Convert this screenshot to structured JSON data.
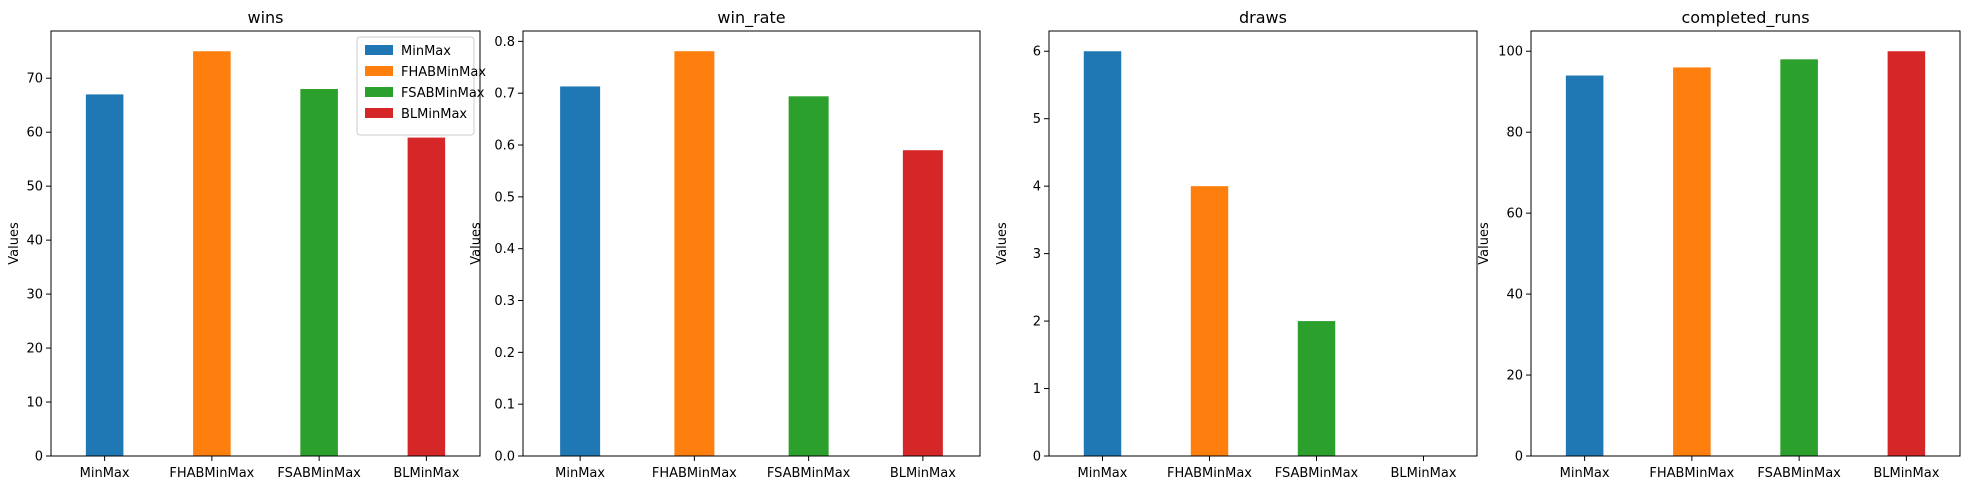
{
  "colors": {
    "MinMax": "#1f77b4",
    "FHABMinMax": "#ff7f0e",
    "FSABMinMax": "#2ca02c",
    "BLMinMax": "#d62728"
  },
  "chart_data": [
    {
      "type": "bar",
      "title": "wins",
      "xlabel": "",
      "ylabel": "Values",
      "categories": [
        "MinMax",
        "FHABMinMax",
        "FSABMinMax",
        "BLMinMax"
      ],
      "values": [
        67,
        75,
        68,
        59
      ],
      "ylim": [
        0,
        78.75
      ],
      "yticks": [
        0,
        10,
        20,
        30,
        40,
        50,
        60,
        70
      ],
      "ytick_labels": [
        "0",
        "10",
        "20",
        "30",
        "40",
        "50",
        "60",
        "70"
      ],
      "legend": {
        "placement": "top-right",
        "entries": [
          "MinMax",
          "FHABMinMax",
          "FSABMinMax",
          "BLMinMax"
        ]
      }
    },
    {
      "type": "bar",
      "title": "win_rate",
      "xlabel": "",
      "ylabel": "Values",
      "categories": [
        "MinMax",
        "FHABMinMax",
        "FSABMinMax",
        "BLMinMax"
      ],
      "values": [
        0.713,
        0.781,
        0.694,
        0.59
      ],
      "ylim": [
        0,
        0.82
      ],
      "yticks": [
        0,
        0.1,
        0.2,
        0.3,
        0.4,
        0.5,
        0.6,
        0.7,
        0.8
      ],
      "ytick_labels": [
        "0.0",
        "0.1",
        "0.2",
        "0.3",
        "0.4",
        "0.5",
        "0.6",
        "0.7",
        "0.8"
      ]
    },
    {
      "type": "bar",
      "title": "draws",
      "xlabel": "",
      "ylabel": "Values",
      "categories": [
        "MinMax",
        "FHABMinMax",
        "FSABMinMax",
        "BLMinMax"
      ],
      "values": [
        6,
        4,
        2,
        0
      ],
      "ylim": [
        0,
        6.3
      ],
      "yticks": [
        0,
        1,
        2,
        3,
        4,
        5,
        6
      ],
      "ytick_labels": [
        "0",
        "1",
        "2",
        "3",
        "4",
        "5",
        "6"
      ]
    },
    {
      "type": "bar",
      "title": "completed_runs",
      "xlabel": "",
      "ylabel": "Values",
      "categories": [
        "MinMax",
        "FHABMinMax",
        "FSABMinMax",
        "BLMinMax"
      ],
      "values": [
        94,
        96,
        98,
        100
      ],
      "ylim": [
        0,
        105
      ],
      "yticks": [
        0,
        20,
        40,
        60,
        80,
        100
      ],
      "ytick_labels": [
        "0",
        "20",
        "40",
        "60",
        "80",
        "100"
      ]
    }
  ]
}
